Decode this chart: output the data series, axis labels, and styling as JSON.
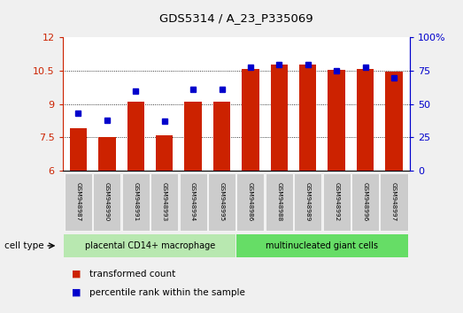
{
  "title": "GDS5314 / A_23_P335069",
  "samples": [
    "GSM948987",
    "GSM948990",
    "GSM948991",
    "GSM948993",
    "GSM948994",
    "GSM948995",
    "GSM948986",
    "GSM948988",
    "GSM948989",
    "GSM948992",
    "GSM948996",
    "GSM948997"
  ],
  "transformed_count": [
    7.9,
    7.5,
    9.1,
    7.6,
    9.1,
    9.1,
    10.6,
    10.8,
    10.8,
    10.55,
    10.6,
    10.45
  ],
  "percentile_rank": [
    43,
    38,
    60,
    37,
    61,
    61,
    78,
    80,
    80,
    75,
    78,
    70
  ],
  "group_labels": [
    "placental CD14+ macrophage",
    "multinucleated giant cells"
  ],
  "group_colors": [
    "#b8e8b0",
    "#66dd66"
  ],
  "bar_color": "#cc2200",
  "dot_color": "#0000cc",
  "bg_color": "#f0f0f0",
  "plot_bg": "#ffffff",
  "ylim_left": [
    6,
    12
  ],
  "ylim_right": [
    0,
    100
  ],
  "yticks_left": [
    6,
    7.5,
    9,
    10.5,
    12
  ],
  "ytick_labels_left": [
    "6",
    "7.5",
    "9",
    "10.5",
    "12"
  ],
  "yticks_right": [
    0,
    25,
    50,
    75,
    100
  ],
  "ytick_labels_right": [
    "0",
    "25",
    "50",
    "75",
    "100%"
  ],
  "legend_tc": "transformed count",
  "legend_pr": "percentile rank within the sample",
  "cell_type_label": "cell type",
  "sample_box_color": "#cccccc",
  "n_group1": 6,
  "n_group2": 6
}
